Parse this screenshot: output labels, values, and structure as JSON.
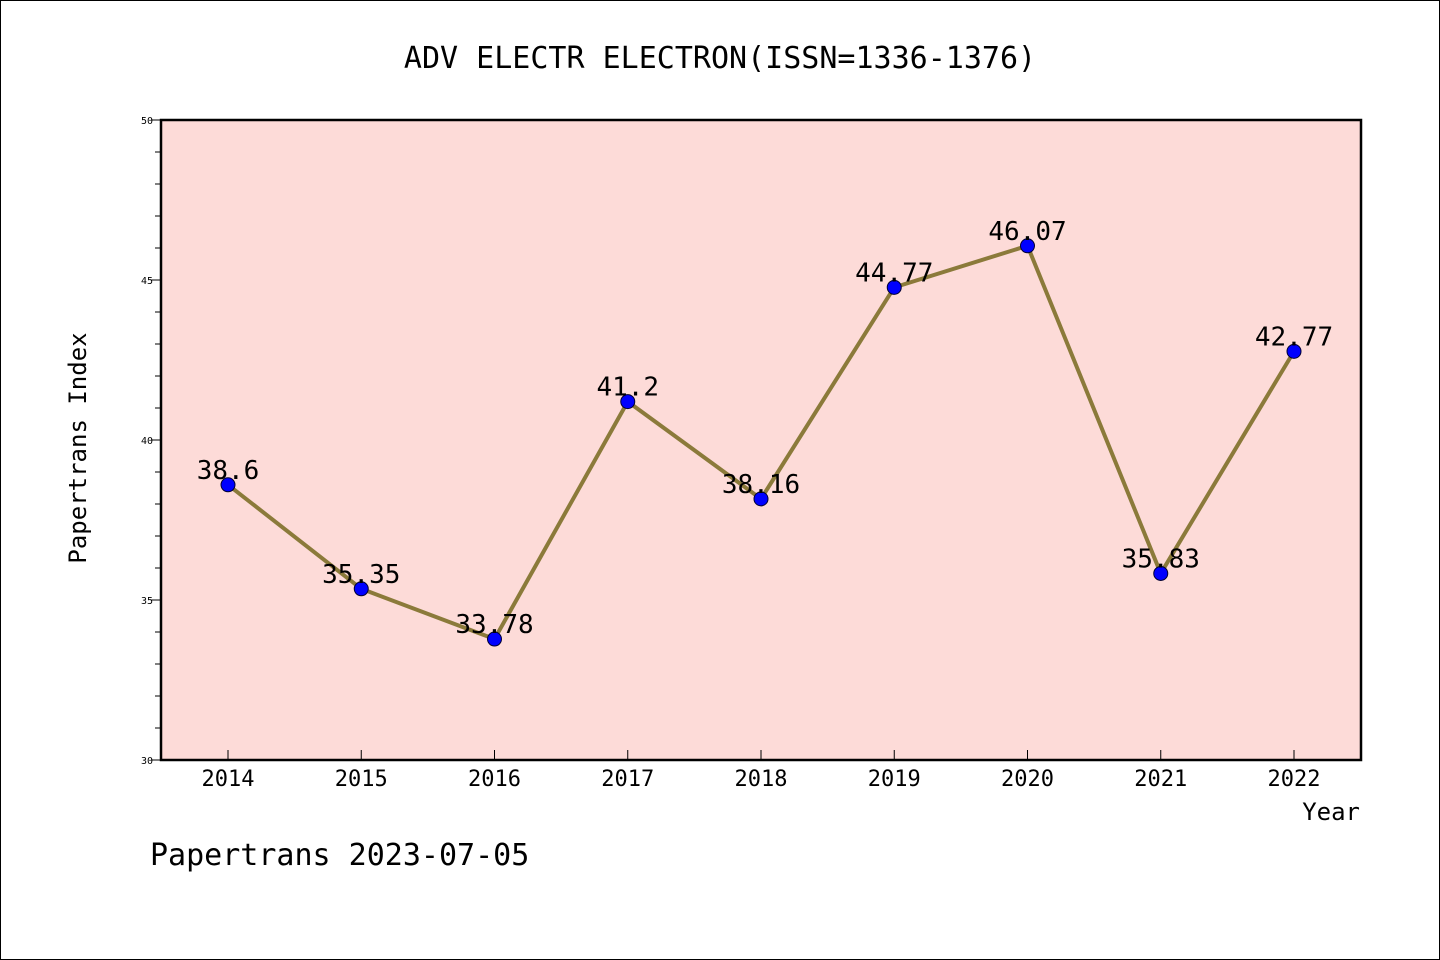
{
  "chart_data": {
    "type": "line",
    "title": "ADV ELECTR ELECTRON(ISSN=1336-1376)",
    "xlabel": "Year",
    "ylabel": "Papertrans Index",
    "x": [
      "2014",
      "2015",
      "2016",
      "2017",
      "2018",
      "2019",
      "2020",
      "2021",
      "2022"
    ],
    "series": [
      {
        "values": [
          38.6,
          35.35,
          33.78,
          41.2,
          38.16,
          44.77,
          46.07,
          35.83,
          42.77
        ],
        "labels": [
          "38.6",
          "35.35",
          "33.78",
          "41.2",
          "38.16",
          "44.77",
          "46.07",
          "35.83",
          "42.77"
        ]
      }
    ],
    "ylim": [
      30,
      50
    ],
    "yticks": [
      30,
      35,
      40,
      45,
      50
    ],
    "grid": false,
    "colors": {
      "plot_background": "#fddbd8",
      "line": "#8b7a3a",
      "marker": "#0000ff"
    }
  },
  "footer": {
    "text": "Papertrans 2023-07-05"
  }
}
